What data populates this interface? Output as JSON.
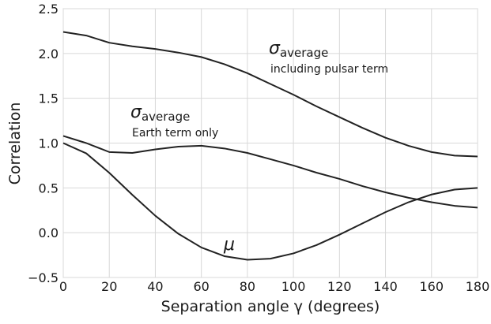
{
  "chart_data": {
    "type": "line",
    "x_label": "Separation angle γ (degrees)",
    "y_label": "Correlation",
    "x": [
      0,
      10,
      20,
      30,
      40,
      50,
      60,
      70,
      80,
      90,
      100,
      110,
      120,
      130,
      140,
      150,
      160,
      170,
      180
    ],
    "series": [
      {
        "color": "#222222",
        "values": [
          2.24,
          2.2,
          2.12,
          2.08,
          2.05,
          2.01,
          1.96,
          1.88,
          1.78,
          1.66,
          1.54,
          1.41,
          1.29,
          1.17,
          1.06,
          0.97,
          0.9,
          0.86,
          0.85
        ]
      },
      {
        "color": "#222222",
        "values": [
          1.08,
          1.0,
          0.9,
          0.89,
          0.93,
          0.96,
          0.97,
          0.94,
          0.89,
          0.82,
          0.75,
          0.67,
          0.6,
          0.52,
          0.45,
          0.39,
          0.34,
          0.3,
          0.28
        ]
      },
      {
        "color": "#222222",
        "values": [
          1.0,
          0.885,
          0.668,
          0.423,
          0.189,
          -0.012,
          -0.165,
          -0.262,
          -0.302,
          -0.29,
          -0.231,
          -0.139,
          -0.022,
          0.104,
          0.229,
          0.34,
          0.426,
          0.481,
          0.5
        ]
      }
    ],
    "annotations": [
      {
        "symbol": "σ",
        "subscript": "average",
        "text": "including pulsar term"
      },
      {
        "symbol": "σ",
        "subscript": "average",
        "text": "Earth term only"
      },
      {
        "symbol": "μ"
      }
    ],
    "xlim": [
      0,
      180
    ],
    "xticks": [
      0,
      20,
      40,
      60,
      80,
      100,
      120,
      140,
      160,
      180
    ],
    "ylim": [
      -0.5,
      2.5
    ],
    "yticks": [
      {
        "value": -0.5,
        "label": "−0.5"
      },
      {
        "value": 0,
        "label": "0.0"
      },
      0.5,
      {
        "value": 1,
        "label": "1.0"
      },
      1.5,
      {
        "value": 2,
        "label": "2.0"
      },
      2.5
    ],
    "grid": true
  }
}
